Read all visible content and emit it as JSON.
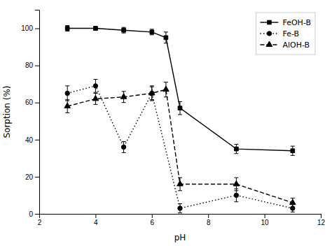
{
  "chart_data": {
    "type": "line",
    "xlabel": "pH",
    "ylabel": "Sorption (%)",
    "series": [
      {
        "name": "FeOH-B",
        "color": "#000000",
        "line_style": "solid",
        "marker": "square",
        "x": [
          3,
          4,
          5,
          6,
          6.5,
          7,
          9,
          11
        ],
        "values": [
          100,
          100,
          99,
          98,
          95,
          57,
          35,
          34
        ],
        "errors": [
          1.5,
          1.0,
          1.5,
          1.5,
          3.0,
          3.5,
          2.5,
          2.5
        ]
      },
      {
        "name": "Fe-B",
        "color": "#000000",
        "line_style": "dotted",
        "marker": "circle",
        "x": [
          3,
          4,
          5,
          6,
          7,
          9,
          11
        ],
        "values": [
          65,
          69,
          36,
          65,
          3,
          10,
          3
        ],
        "errors": [
          4.0,
          3.5,
          3.0,
          4.0,
          2.5,
          3.5,
          2.0
        ]
      },
      {
        "name": "AlOH-B",
        "color": "#000000",
        "line_style": "dashed",
        "marker": "triangle",
        "x": [
          3,
          4,
          5,
          6,
          6.5,
          7,
          9,
          11
        ],
        "values": [
          58,
          62,
          63,
          65,
          67,
          16,
          16,
          6
        ],
        "errors": [
          3.5,
          3.0,
          3.0,
          3.5,
          4.0,
          3.5,
          3.5,
          2.5
        ]
      }
    ],
    "xlim": [
      2,
      12
    ],
    "ylim": [
      0,
      110
    ],
    "xticks": [
      2,
      4,
      6,
      8,
      10,
      12
    ],
    "yticks": [
      0,
      20,
      40,
      60,
      80,
      100
    ],
    "grid": false,
    "legend": "upper right"
  }
}
